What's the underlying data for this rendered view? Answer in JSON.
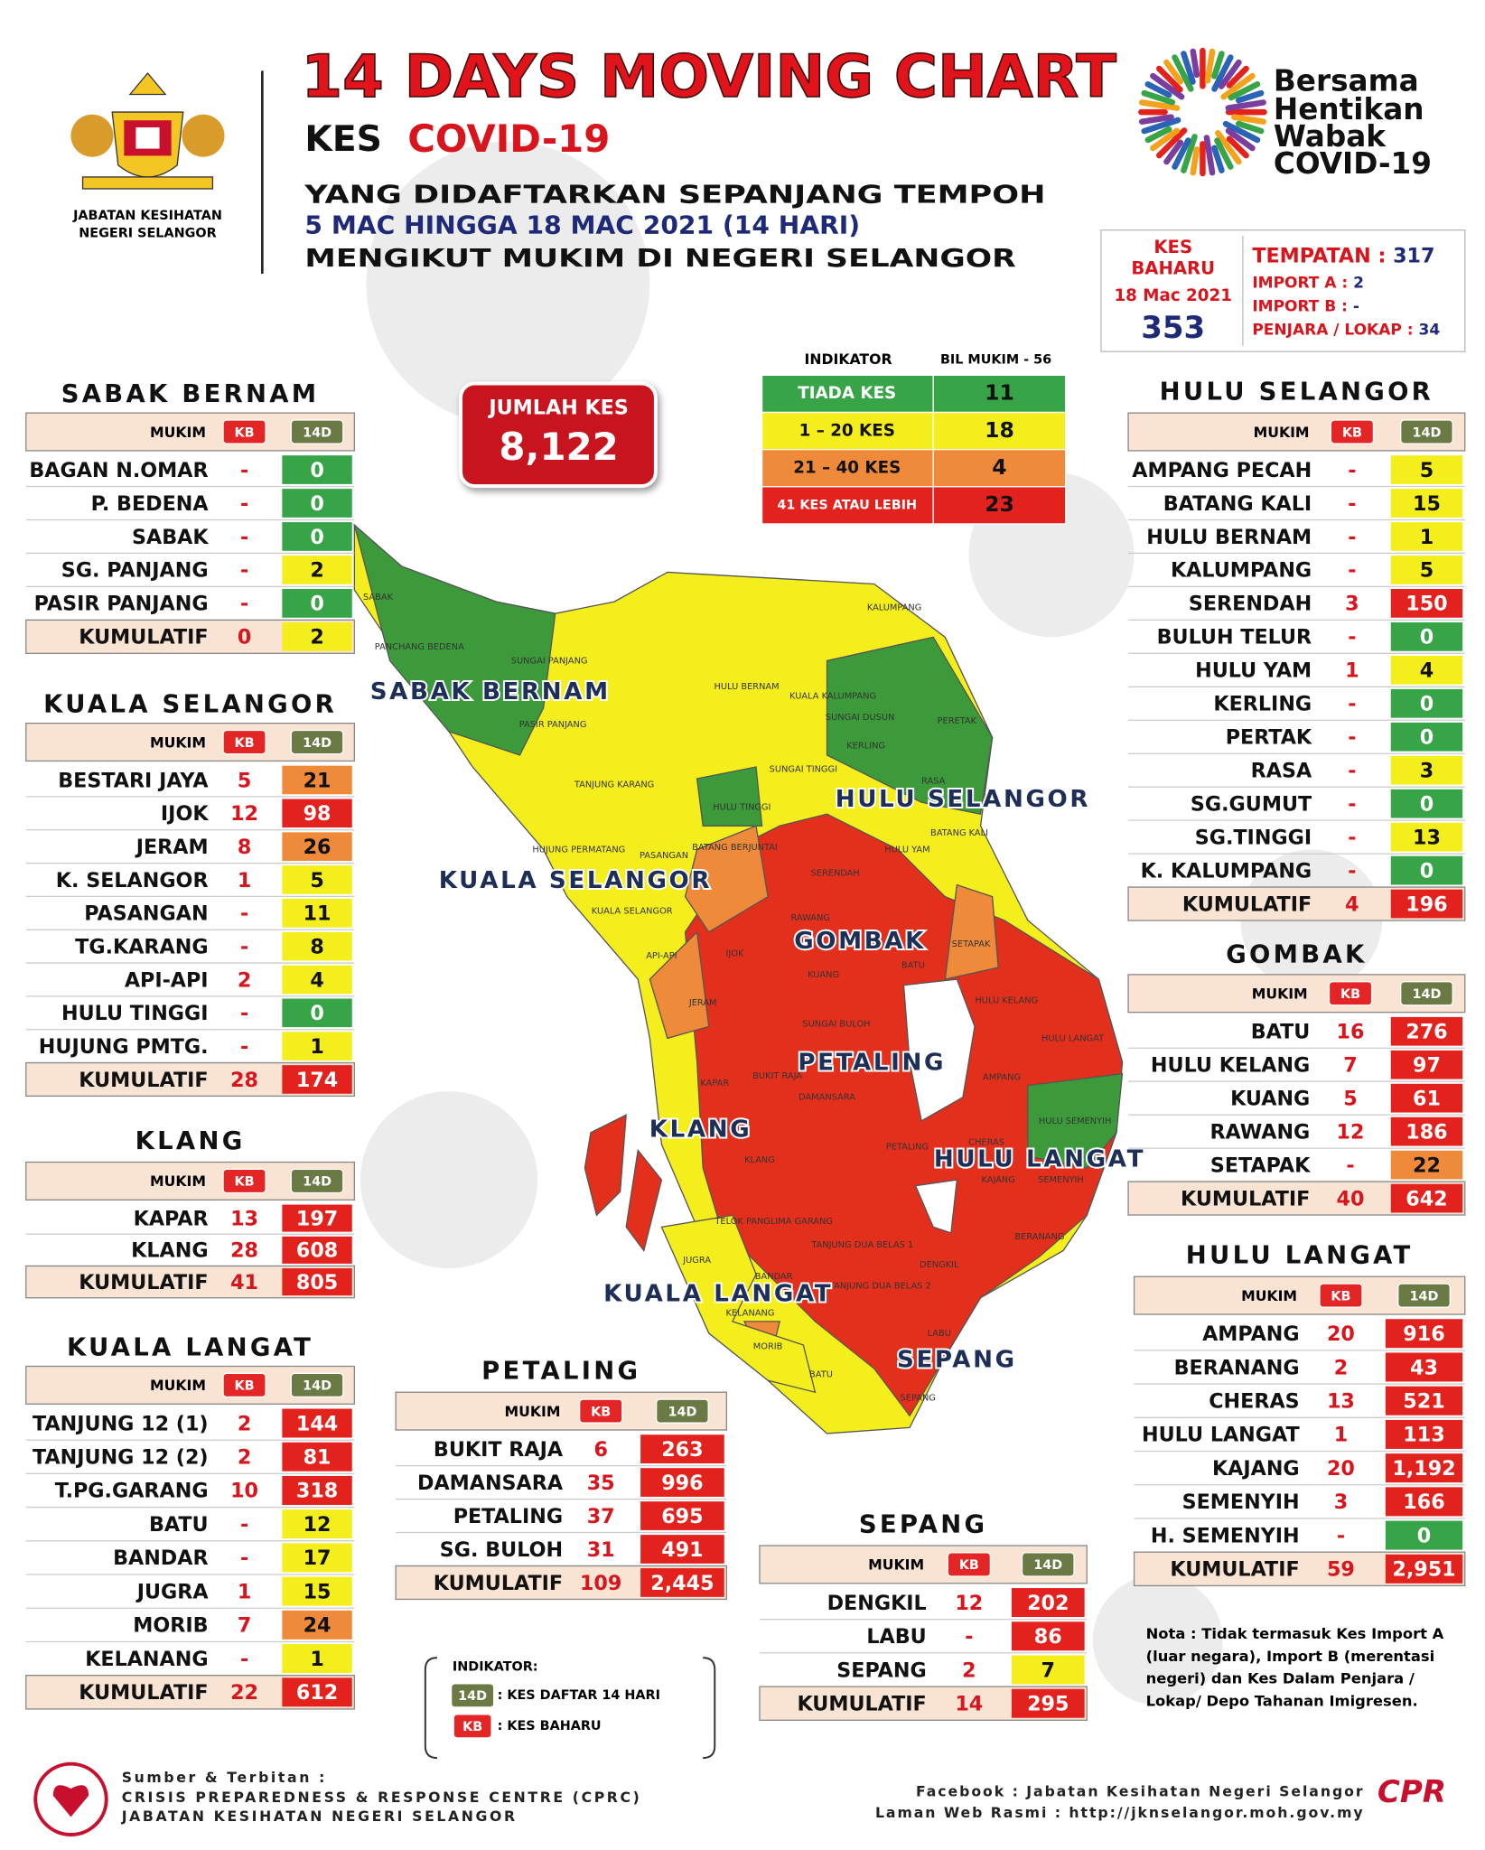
{
  "header": {
    "logo_caption": [
      "JABATAN KESIHATAN",
      "NEGERI SELANGOR"
    ],
    "title": "14 DAYS MOVING CHART",
    "subtitle_prefix": "KES",
    "subtitle_highlight": "COVID-19",
    "lines": [
      "YANG DIDAFTARKAN SEPANJANG TEMPOH",
      "5 MAC HINGGA 18 MAC 2021 (14 HARI)",
      "MENGIKUT MUKIM DI NEGERI SELANGOR"
    ],
    "campaign": [
      "Bersama",
      "Hentikan",
      "Wabak",
      "COVID-19"
    ]
  },
  "new_cases": {
    "label": [
      "KES",
      "BAHARU"
    ],
    "date": "18 Mac 2021",
    "total": "353",
    "breakdown": [
      {
        "label": "TEMPATAN :",
        "value": "317"
      },
      {
        "label": "IMPORT A :",
        "value": "2"
      },
      {
        "label": "IMPORT B :",
        "value": "-"
      },
      {
        "label": "PENJARA / LOKAP :",
        "value": "34"
      }
    ]
  },
  "total_cases": {
    "label": "JUMLAH KES",
    "value": "8,122"
  },
  "indicator": {
    "headers": [
      "INDIKATOR",
      "BIL MUKIM - 56"
    ],
    "rows": [
      {
        "label": "TIADA KES",
        "count": "11",
        "color": "#36a447"
      },
      {
        "label": "1 – 20 KES",
        "count": "18",
        "color": "#f4ee1c"
      },
      {
        "label": "21 – 40 KES",
        "count": "4",
        "color": "#ee8a3a"
      },
      {
        "label": "41 KES ATAU LEBIH",
        "count": "23",
        "color": "#e3211d"
      }
    ]
  },
  "table_headers": [
    "MUKIM",
    "KB",
    "14D"
  ],
  "districts": [
    {
      "name": "SABAK BERNAM",
      "rows": [
        [
          "BAGAN N.OMAR",
          "-",
          "0"
        ],
        [
          "P. BEDENA",
          "-",
          "0"
        ],
        [
          "SABAK",
          "-",
          "0"
        ],
        [
          "SG. PANJANG",
          "-",
          "2"
        ],
        [
          "PASIR PANJANG",
          "-",
          "0"
        ]
      ],
      "total": [
        "KUMULATIF",
        "0",
        "2"
      ]
    },
    {
      "name": "KUALA SELANGOR",
      "rows": [
        [
          "BESTARI JAYA",
          "5",
          "21"
        ],
        [
          "IJOK",
          "12",
          "98"
        ],
        [
          "JERAM",
          "8",
          "26"
        ],
        [
          "K. SELANGOR",
          "1",
          "5"
        ],
        [
          "PASANGAN",
          "-",
          "11"
        ],
        [
          "TG.KARANG",
          "-",
          "8"
        ],
        [
          "API-API",
          "2",
          "4"
        ],
        [
          "HULU TINGGI",
          "-",
          "0"
        ],
        [
          "HUJUNG PMTG.",
          "-",
          "1"
        ]
      ],
      "total": [
        "KUMULATIF",
        "28",
        "174"
      ]
    },
    {
      "name": "KLANG",
      "rows": [
        [
          "KAPAR",
          "13",
          "197"
        ],
        [
          "KLANG",
          "28",
          "608"
        ]
      ],
      "total": [
        "KUMULATIF",
        "41",
        "805"
      ]
    },
    {
      "name": "KUALA LANGAT",
      "rows": [
        [
          "TANJUNG 12 (1)",
          "2",
          "144"
        ],
        [
          "TANJUNG 12 (2)",
          "2",
          "81"
        ],
        [
          "T.PG.GARANG",
          "10",
          "318"
        ],
        [
          "BATU",
          "-",
          "12"
        ],
        [
          "BANDAR",
          "-",
          "17"
        ],
        [
          "JUGRA",
          "1",
          "15"
        ],
        [
          "MORIB",
          "7",
          "24"
        ],
        [
          "KELANANG",
          "-",
          "1"
        ]
      ],
      "total": [
        "KUMULATIF",
        "22",
        "612"
      ]
    },
    {
      "name": "PETALING",
      "rows": [
        [
          "BUKIT RAJA",
          "6",
          "263"
        ],
        [
          "DAMANSARA",
          "35",
          "996"
        ],
        [
          "PETALING",
          "37",
          "695"
        ],
        [
          "SG. BULOH",
          "31",
          "491"
        ]
      ],
      "total": [
        "KUMULATIF",
        "109",
        "2,445"
      ]
    },
    {
      "name": "SEPANG",
      "rows": [
        [
          "DENGKIL",
          "12",
          "202"
        ],
        [
          "LABU",
          "-",
          "86"
        ],
        [
          "SEPANG",
          "2",
          "7"
        ]
      ],
      "total": [
        "KUMULATIF",
        "14",
        "295"
      ]
    },
    {
      "name": "HULU SELANGOR",
      "rows": [
        [
          "AMPANG PECAH",
          "-",
          "5"
        ],
        [
          "BATANG KALI",
          "-",
          "15"
        ],
        [
          "HULU BERNAM",
          "-",
          "1"
        ],
        [
          "KALUMPANG",
          "-",
          "5"
        ],
        [
          "SERENDAH",
          "3",
          "150"
        ],
        [
          "BULUH TELUR",
          "-",
          "0"
        ],
        [
          "HULU YAM",
          "1",
          "4"
        ],
        [
          "KERLING",
          "-",
          "0"
        ],
        [
          "PERTAK",
          "-",
          "0"
        ],
        [
          "RASA",
          "-",
          "3"
        ],
        [
          "SG.GUMUT",
          "-",
          "0"
        ],
        [
          "SG.TINGGI",
          "-",
          "13"
        ],
        [
          "K. KALUMPANG",
          "-",
          "0"
        ]
      ],
      "total": [
        "KUMULATIF",
        "4",
        "196"
      ]
    },
    {
      "name": "GOMBAK",
      "rows": [
        [
          "BATU",
          "16",
          "276"
        ],
        [
          "HULU KELANG",
          "7",
          "97"
        ],
        [
          "KUANG",
          "5",
          "61"
        ],
        [
          "RAWANG",
          "12",
          "186"
        ],
        [
          "SETAPAK",
          "-",
          "22"
        ]
      ],
      "total": [
        "KUMULATIF",
        "40",
        "642"
      ]
    },
    {
      "name": "HULU LANGAT",
      "rows": [
        [
          "AMPANG",
          "20",
          "916"
        ],
        [
          "BERANANG",
          "2",
          "43"
        ],
        [
          "CHERAS",
          "13",
          "521"
        ],
        [
          "HULU LANGAT",
          "1",
          "113"
        ],
        [
          "KAJANG",
          "20",
          "1,192"
        ],
        [
          "SEMENYIH",
          "3",
          "166"
        ],
        [
          "H. SEMENYIH",
          "-",
          "0"
        ]
      ],
      "total": [
        "KUMULATIF",
        "59",
        "2,951"
      ]
    }
  ],
  "map": {
    "district_labels": [
      "SABAK BERNAM",
      "HULU SELANGOR",
      "KUALA SELANGOR",
      "GOMBAK",
      "PETALING",
      "KLANG",
      "HULU LANGAT",
      "KUALA LANGAT",
      "SEPANG"
    ],
    "mukim_labels": [
      "SABAK",
      "PANCHANG BEDENA",
      "SUNGAI PANJANG",
      "PASIR PANJANG",
      "HULU BERNAM",
      "KALUMPANG",
      "KUALA KALUMPANG",
      "SUNGAI DUSUN",
      "KERLING",
      "PERETAK",
      "SUNGAI TINGGI",
      "TANJUNG KARANG",
      "HULU TINGGI",
      "RASA",
      "BATANG KALI",
      "HULU YAM",
      "HUJUNG PERMATANG",
      "PASANGAN",
      "BATANG BERJUNTAI",
      "KUALA SELANGOR",
      "SERENDAH",
      "RAWANG",
      "API-API",
      "IJOK",
      "BATU",
      "SETAPAK",
      "KUANG",
      "HULU KELANG",
      "JERAM",
      "SUNGAI BULOH",
      "HULU LANGAT",
      "KAPAR",
      "BUKIT RAJA",
      "AMPANG",
      "DAMANSARA",
      "HULU SEMENYIH",
      "CHERAS",
      "PETALING",
      "KLANG",
      "KAJANG",
      "SEMENYIH",
      "TELOK PANGLIMA GARANG",
      "TANJUNG DUA BELAS 1",
      "BERANANG",
      "JUGRA",
      "DENGKIL",
      "BANDAR",
      "TANJUNG DUA BELAS 2",
      "KELANANG",
      "MORIB",
      "LABU",
      "BATU",
      "SEPANG"
    ]
  },
  "legend": {
    "title": "INDIKATOR:",
    "items": [
      {
        "badge": "14D",
        "text": ": KES DAFTAR 14 HARI"
      },
      {
        "badge": "KB",
        "text": ": KES BAHARU"
      }
    ]
  },
  "note": "Nota : Tidak termasuk Kes Import A (luar negara), Import B (merentasi negeri) dan Kes Dalam Penjara / Lokap/ Depo Tahanan Imigresen.",
  "footer": {
    "source": [
      "Sumber & Terbitan :",
      "CRISIS PREPAREDNESS & RESPONSE CENTRE (CPRC)",
      "JABATAN KESIHATAN NEGERI SELANGOR"
    ],
    "links": [
      "Facebook : Jabatan Kesihatan Negeri Selangor",
      "Laman Web Rasmi : http://jknselangor.moh.gov.my"
    ]
  }
}
